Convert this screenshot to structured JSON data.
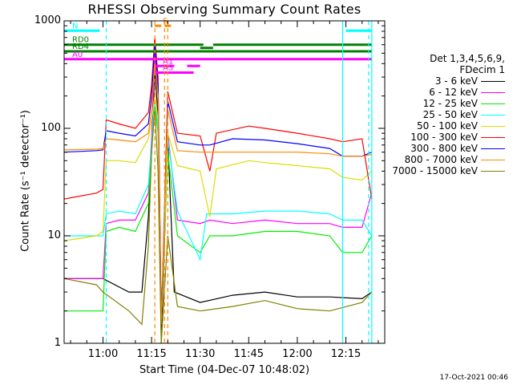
{
  "chart_data": {
    "type": "line",
    "title": "RHESSI Observing Summary Count Rates",
    "xlabel": "Start Time (04-Dec-07 10:48:02)",
    "ylabel": "Count Rate (s⁻¹ detector⁻¹)",
    "yscale": "log",
    "ylim": [
      1,
      1000
    ],
    "xlim": [
      "10:48",
      "12:27"
    ],
    "y_ticks": [
      "1",
      "10",
      "100",
      "1000"
    ],
    "x_ticks": [
      "11:00",
      "11:15",
      "11:30",
      "11:45",
      "12:00",
      "12:15"
    ],
    "legend_header": [
      "Det 1,3,4,5,6,9,",
      "FDecim 1"
    ],
    "legend_placement": "right",
    "timestamp": "17-Oct-2021 00:46",
    "grid": false,
    "series": [
      {
        "name": "3 - 6 keV",
        "color": "#000000",
        "points": [
          [
            "10:48",
            4
          ],
          [
            "10:58",
            4
          ],
          [
            "11:00",
            4
          ],
          [
            "11:08",
            3
          ],
          [
            "11:12",
            3
          ],
          [
            "11:14",
            15
          ],
          [
            "11:15",
            60
          ],
          [
            "11:16",
            350
          ],
          [
            "11:17",
            130
          ],
          [
            "11:18",
            1
          ],
          [
            "11:20",
            80
          ],
          [
            "11:22",
            3
          ],
          [
            "11:30",
            2.4
          ],
          [
            "11:40",
            2.8
          ],
          [
            "11:50",
            3
          ],
          [
            "12:00",
            2.7
          ],
          [
            "12:10",
            2.7
          ],
          [
            "12:20",
            2.6
          ],
          [
            "12:23",
            3
          ]
        ]
      },
      {
        "name": "6 - 12 keV",
        "color": "#ff00ff",
        "points": [
          [
            "10:48",
            4
          ],
          [
            "11:00",
            4
          ],
          [
            "11:01",
            13
          ],
          [
            "11:05",
            14
          ],
          [
            "11:10",
            14
          ],
          [
            "11:14",
            25
          ],
          [
            "11:15",
            80
          ],
          [
            "11:16",
            500
          ],
          [
            "11:17",
            200
          ],
          [
            "11:18",
            1.5
          ],
          [
            "11:20",
            90
          ],
          [
            "11:23",
            14
          ],
          [
            "11:30",
            13
          ],
          [
            "11:33",
            14
          ],
          [
            "11:40",
            13
          ],
          [
            "11:50",
            14
          ],
          [
            "12:00",
            13
          ],
          [
            "12:10",
            13
          ],
          [
            "12:14",
            12
          ],
          [
            "12:20",
            12
          ],
          [
            "12:23",
            25
          ]
        ]
      },
      {
        "name": "12 - 25 keV",
        "color": "#00ee00",
        "points": [
          [
            "10:48",
            2
          ],
          [
            "10:58",
            2
          ],
          [
            "11:00",
            2
          ],
          [
            "11:01",
            11
          ],
          [
            "11:05",
            12
          ],
          [
            "11:10",
            11
          ],
          [
            "11:14",
            20
          ],
          [
            "11:15",
            60
          ],
          [
            "11:16",
            160
          ],
          [
            "11:17",
            90
          ],
          [
            "11:18",
            1.5
          ],
          [
            "11:20",
            60
          ],
          [
            "11:23",
            10
          ],
          [
            "11:30",
            7
          ],
          [
            "11:33",
            10
          ],
          [
            "11:40",
            10
          ],
          [
            "11:50",
            11
          ],
          [
            "12:00",
            11
          ],
          [
            "12:10",
            10
          ],
          [
            "12:14",
            7
          ],
          [
            "12:20",
            7
          ],
          [
            "12:23",
            10
          ]
        ]
      },
      {
        "name": "25 - 50 keV",
        "color": "#00ffff",
        "points": [
          [
            "10:48",
            10
          ],
          [
            "10:59",
            10
          ],
          [
            "11:00",
            10
          ],
          [
            "11:01",
            16
          ],
          [
            "11:05",
            17
          ],
          [
            "11:10",
            16
          ],
          [
            "11:14",
            30
          ],
          [
            "11:15",
            70
          ],
          [
            "11:16",
            200
          ],
          [
            "11:17",
            100
          ],
          [
            "11:18",
            1.5
          ],
          [
            "11:20",
            80
          ],
          [
            "11:23",
            17
          ],
          [
            "11:30",
            6
          ],
          [
            "11:32",
            16
          ],
          [
            "11:40",
            16
          ],
          [
            "11:50",
            17
          ],
          [
            "12:00",
            17
          ],
          [
            "12:10",
            16
          ],
          [
            "12:14",
            14
          ],
          [
            "12:20",
            14
          ],
          [
            "12:23",
            10
          ]
        ]
      },
      {
        "name": "50 - 100 keV",
        "color": "#dddd00",
        "points": [
          [
            "10:48",
            9
          ],
          [
            "10:58",
            10
          ],
          [
            "11:00",
            11
          ],
          [
            "11:01",
            50
          ],
          [
            "11:05",
            50
          ],
          [
            "11:10",
            48
          ],
          [
            "11:14",
            80
          ],
          [
            "11:15",
            120
          ],
          [
            "11:16",
            200
          ],
          [
            "11:17",
            120
          ],
          [
            "11:18",
            1.5
          ],
          [
            "11:20",
            90
          ],
          [
            "11:23",
            45
          ],
          [
            "11:30",
            40
          ],
          [
            "11:33",
            15
          ],
          [
            "11:35",
            42
          ],
          [
            "11:45",
            50
          ],
          [
            "11:50",
            48
          ],
          [
            "12:00",
            45
          ],
          [
            "12:10",
            42
          ],
          [
            "12:14",
            35
          ],
          [
            "12:20",
            33
          ],
          [
            "12:23",
            40
          ]
        ]
      },
      {
        "name": "100 - 300 keV",
        "color": "#ff0000",
        "points": [
          [
            "10:48",
            22
          ],
          [
            "10:58",
            25
          ],
          [
            "11:00",
            27
          ],
          [
            "11:01",
            120
          ],
          [
            "11:05",
            110
          ],
          [
            "11:10",
            100
          ],
          [
            "11:14",
            140
          ],
          [
            "11:15",
            250
          ],
          [
            "11:16",
            700
          ],
          [
            "11:17",
            300
          ],
          [
            "11:18",
            1.5
          ],
          [
            "11:20",
            220
          ],
          [
            "11:23",
            90
          ],
          [
            "11:30",
            85
          ],
          [
            "11:33",
            40
          ],
          [
            "11:35",
            90
          ],
          [
            "11:45",
            105
          ],
          [
            "11:50",
            100
          ],
          [
            "12:00",
            90
          ],
          [
            "12:10",
            80
          ],
          [
            "12:14",
            75
          ],
          [
            "12:20",
            80
          ],
          [
            "12:23",
            22
          ]
        ]
      },
      {
        "name": "300 - 800 keV",
        "color": "#0000ff",
        "points": [
          [
            "10:48",
            60
          ],
          [
            "10:58",
            62
          ],
          [
            "11:00",
            63
          ],
          [
            "11:01",
            95
          ],
          [
            "11:05",
            90
          ],
          [
            "11:10",
            85
          ],
          [
            "11:14",
            110
          ],
          [
            "11:15",
            200
          ],
          [
            "11:16",
            600
          ],
          [
            "11:17",
            260
          ],
          [
            "11:18",
            1.5
          ],
          [
            "11:20",
            180
          ],
          [
            "11:23",
            75
          ],
          [
            "11:30",
            70
          ],
          [
            "11:33",
            70
          ],
          [
            "11:40",
            80
          ],
          [
            "11:50",
            78
          ],
          [
            "12:00",
            72
          ],
          [
            "12:10",
            65
          ],
          [
            "12:14",
            55
          ],
          [
            "12:20",
            55
          ],
          [
            "12:23",
            60
          ]
        ]
      },
      {
        "name": "800 - 7000 keV",
        "color": "#ff8800",
        "points": [
          [
            "10:48",
            63
          ],
          [
            "10:58",
            64
          ],
          [
            "11:00",
            65
          ],
          [
            "11:01",
            80
          ],
          [
            "11:05",
            78
          ],
          [
            "11:10",
            75
          ],
          [
            "11:14",
            90
          ],
          [
            "11:15",
            150
          ],
          [
            "11:16",
            400
          ],
          [
            "11:17",
            200
          ],
          [
            "11:18",
            1.5
          ],
          [
            "11:20",
            150
          ],
          [
            "11:23",
            62
          ],
          [
            "11:30",
            60
          ],
          [
            "11:40",
            60
          ],
          [
            "11:50",
            60
          ],
          [
            "12:00",
            60
          ],
          [
            "12:10",
            58
          ],
          [
            "12:14",
            55
          ],
          [
            "12:20",
            55
          ],
          [
            "12:23",
            57
          ]
        ]
      },
      {
        "name": "7000 - 15000 keV",
        "color": "#808000",
        "points": [
          [
            "10:48",
            4
          ],
          [
            "10:58",
            3.5
          ],
          [
            "11:00",
            3
          ],
          [
            "11:08",
            2
          ],
          [
            "11:12",
            1.5
          ],
          [
            "11:14",
            8
          ],
          [
            "11:15",
            60
          ],
          [
            "11:16",
            150
          ],
          [
            "11:17",
            40
          ],
          [
            "11:18",
            1
          ],
          [
            "11:20",
            10
          ],
          [
            "11:23",
            2.2
          ],
          [
            "11:30",
            2
          ],
          [
            "11:40",
            2.2
          ],
          [
            "11:50",
            2.5
          ],
          [
            "12:00",
            2.1
          ],
          [
            "12:10",
            2
          ],
          [
            "12:20",
            2.4
          ],
          [
            "12:23",
            3
          ]
        ]
      }
    ],
    "annotations": [
      {
        "text": "RD0",
        "color": "#008000",
        "start": "10:48",
        "end": "11:31",
        "level": 600
      },
      {
        "text": "",
        "color": "#008000",
        "start": "11:30",
        "end": "11:34",
        "level": 560
      },
      {
        "text": "",
        "color": "#008000",
        "start": "11:34",
        "end": "12:23",
        "level": 600
      },
      {
        "text": "RD4",
        "color": "#008000",
        "start": "10:48",
        "end": "12:23",
        "level": 520
      },
      {
        "text": "N",
        "color": "#00ffff",
        "start": "10:48",
        "end": "10:59",
        "level": 810
      },
      {
        "text": "",
        "color": "#00ffff",
        "start": "12:15",
        "end": "12:23",
        "level": 810
      },
      {
        "text": "S",
        "color": "#ff8800",
        "start": "11:16",
        "end": "11:18",
        "level": 900
      },
      {
        "text": "",
        "color": "#ff8800",
        "start": "11:19",
        "end": "11:21",
        "level": 900
      },
      {
        "text": "A0",
        "color": "#ff00ff",
        "start": "10:48",
        "end": "12:23",
        "level": 440
      },
      {
        "text": "A1",
        "color": "#ff00ff",
        "start": "11:16",
        "end": "11:22",
        "level": 380
      },
      {
        "text": "A3",
        "color": "#ff00ff",
        "start": "11:16",
        "end": "11:28",
        "level": 330
      },
      {
        "text": "",
        "color": "#ff00ff",
        "start": "11:26",
        "end": "11:30",
        "level": 380
      }
    ],
    "vlines": [
      {
        "t": "11:01",
        "color": "#00ffff",
        "dashed": true
      },
      {
        "t": "11:16",
        "color": "#ff8800",
        "dashed": true
      },
      {
        "t": "11:19",
        "color": "#ff8800",
        "dashed": true
      },
      {
        "t": "11:20",
        "color": "#ff8800",
        "dashed": true
      },
      {
        "t": "12:14",
        "color": "#00ffff",
        "dashed": false
      },
      {
        "t": "12:22",
        "color": "#00ffff",
        "dashed": true
      },
      {
        "t": "12:23",
        "color": "#00ffff",
        "dashed": false
      }
    ]
  }
}
